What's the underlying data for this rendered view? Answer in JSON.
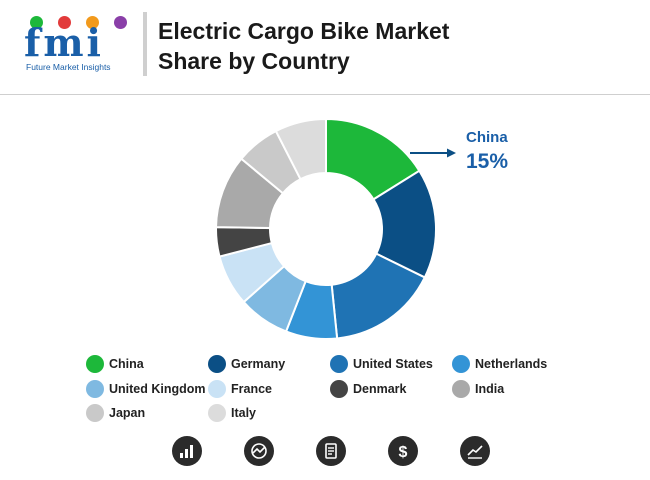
{
  "header": {
    "logo_letters": "fmi",
    "logo_subtitle": "Future Market Insights",
    "title_line1": "Electric Cargo Bike Market",
    "title_line2": "Share by Country"
  },
  "chart_data": {
    "type": "pie",
    "categories": [
      "China",
      "Germany",
      "United States",
      "Netherlands",
      "United Kingdom",
      "France",
      "Denmark",
      "India",
      "Japan",
      "Italy"
    ],
    "values": [
      15,
      15,
      15,
      7,
      7,
      7,
      4,
      10,
      6,
      7
    ],
    "colors": [
      "#1db83a",
      "#0b4f85",
      "#1f73b4",
      "#3394d6",
      "#7fb9e1",
      "#c9e2f5",
      "#444444",
      "#a9a9a9",
      "#c9c9c9",
      "#dcdcdc"
    ],
    "callout": {
      "label": "China",
      "value": "15%"
    }
  },
  "legend_colors": [
    "#1db83a",
    "#0b4f85",
    "#1f73b4",
    "#3394d6",
    "#7fb9e1",
    "#c9e2f5",
    "#444444",
    "#a9a9a9",
    "#c9c9c9",
    "#dcdcdc"
  ],
  "footer_icons": [
    "bar-chart-icon",
    "gauge-icon",
    "report-icon",
    "dollar-icon",
    "line-chart-icon"
  ]
}
